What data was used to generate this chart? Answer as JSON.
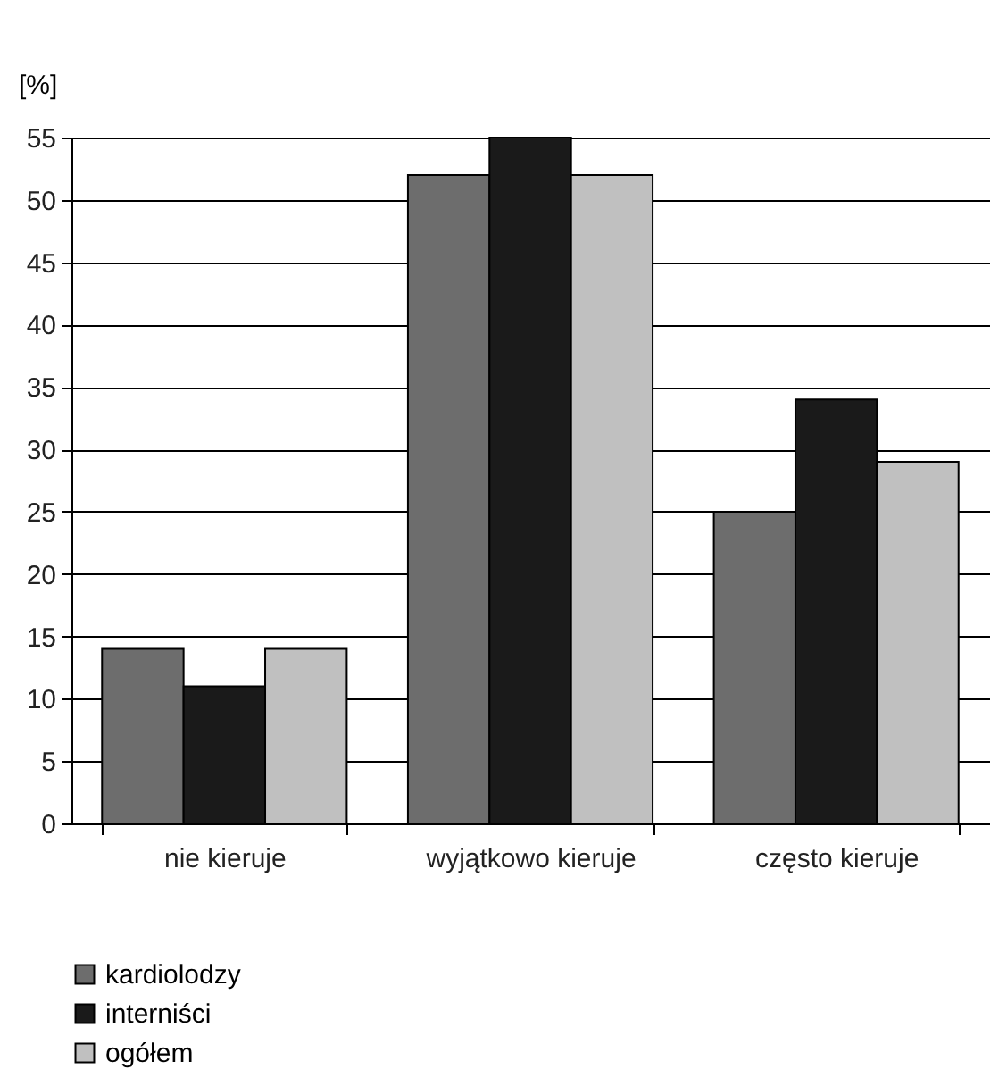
{
  "chart_data": {
    "type": "bar",
    "ylabel": "[%]",
    "categories": [
      "nie kieruje",
      "wyjątkowo kieruje",
      "często kieruje"
    ],
    "series": [
      {
        "name": "kardiolodzy",
        "color": "#6d6d6d",
        "values": [
          14,
          52,
          25
        ]
      },
      {
        "name": "interniści",
        "color": "#1a1a1a",
        "values": [
          11,
          55,
          34
        ]
      },
      {
        "name": "ogółem",
        "color": "#c0c0c0",
        "values": [
          14,
          52,
          29
        ]
      }
    ],
    "ylim": [
      0,
      55
    ],
    "yticks": [
      0,
      5,
      10,
      15,
      20,
      25,
      30,
      35,
      40,
      45,
      50,
      55
    ],
    "grid": "y",
    "legend": "bottom"
  }
}
